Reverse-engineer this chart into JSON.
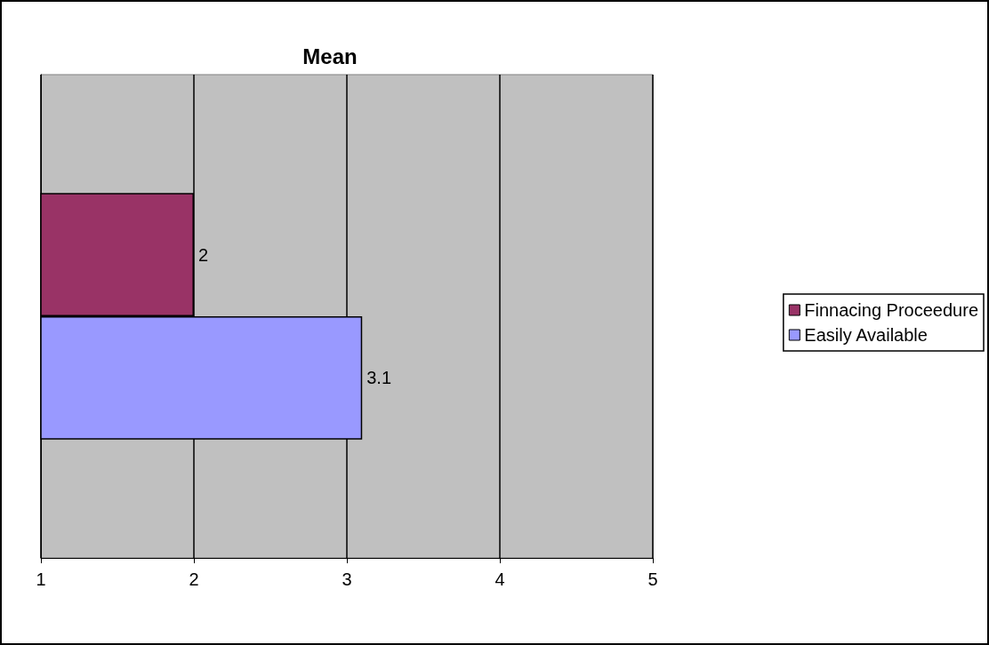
{
  "chart_data": {
    "type": "bar",
    "orientation": "horizontal",
    "title": "Mean",
    "categories": [
      null
    ],
    "series": [
      {
        "name": "Finnacing Proceedure",
        "color": "#993366",
        "values": [
          2
        ]
      },
      {
        "name": "Easily Available",
        "color": "#9999ff",
        "values": [
          3.1
        ]
      }
    ],
    "xlim": [
      1,
      5
    ],
    "xticks": [
      1,
      2,
      3,
      4,
      5
    ],
    "grid": "x",
    "legend": "right",
    "data_labels": true
  }
}
